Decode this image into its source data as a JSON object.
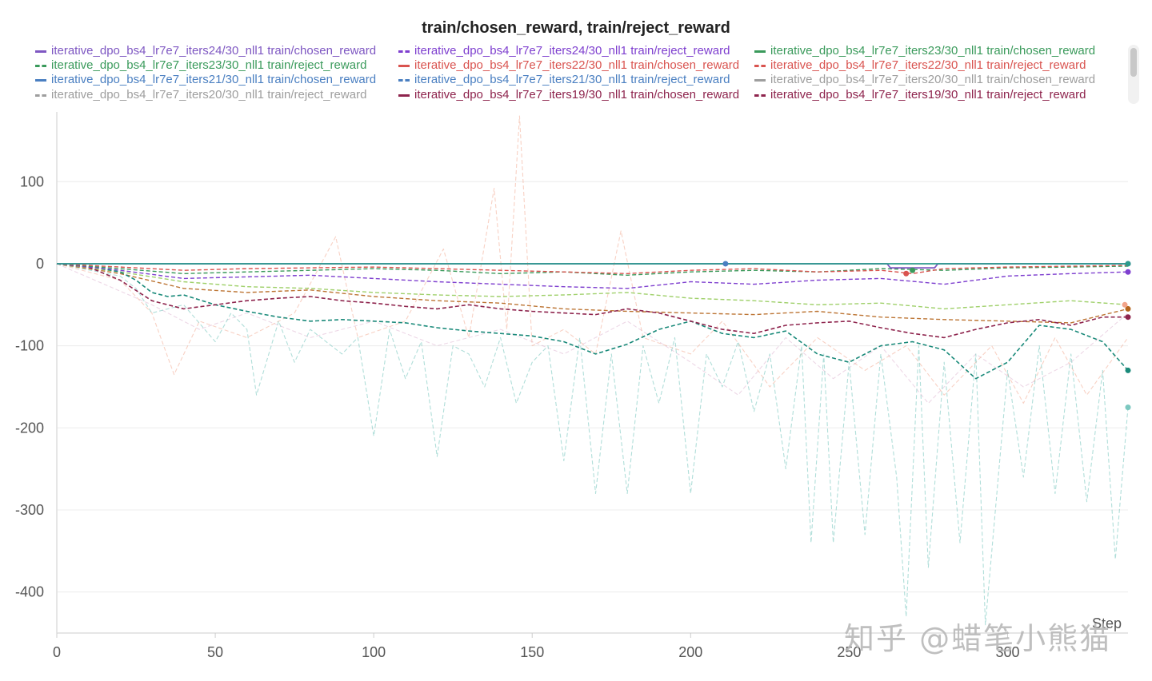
{
  "chart_data": {
    "type": "line",
    "title": "train/chosen_reward, train/reject_reward",
    "xlabel": "Step",
    "ylabel": "",
    "xlim": [
      0,
      338
    ],
    "ylim": [
      -450,
      185
    ],
    "xticks": [
      0,
      50,
      100,
      150,
      200,
      250,
      300
    ],
    "yticks": [
      100,
      0,
      -100,
      -200,
      -300,
      -400
    ],
    "grid": true,
    "legend_position": "top",
    "legend": [
      {
        "label": "iterative_dpo_bs4_lr7e7_iters24/30_nll1 train/chosen_reward",
        "color": "#7e57c2",
        "style": "solid"
      },
      {
        "label": "iterative_dpo_bs4_lr7e7_iters24/30_nll1 train/reject_reward",
        "color": "#7e3fcf",
        "style": "dashed"
      },
      {
        "label": "iterative_dpo_bs4_lr7e7_iters23/30_nll1 train/chosen_reward",
        "color": "#3a9a5b",
        "style": "solid"
      },
      {
        "label": "iterative_dpo_bs4_lr7e7_iters23/30_nll1 train/reject_reward",
        "color": "#3a9a5b",
        "style": "dashed"
      },
      {
        "label": "iterative_dpo_bs4_lr7e7_iters22/30_nll1 train/chosen_reward",
        "color": "#d9534f",
        "style": "solid"
      },
      {
        "label": "iterative_dpo_bs4_lr7e7_iters22/30_nll1 train/reject_reward",
        "color": "#d9534f",
        "style": "dashed"
      },
      {
        "label": "iterative_dpo_bs4_lr7e7_iters21/30_nll1 train/chosen_reward",
        "color": "#4a7fc1",
        "style": "solid"
      },
      {
        "label": "iterative_dpo_bs4_lr7e7_iters21/30_nll1 train/reject_reward",
        "color": "#4a7fc1",
        "style": "dashed"
      },
      {
        "label": "iterative_dpo_bs4_lr7e7_iters20/30_nll1 train/chosen_reward",
        "color": "#9e9e9e",
        "style": "solid"
      },
      {
        "label": "iterative_dpo_bs4_lr7e7_iters20/30_nll1 train/reject_reward",
        "color": "#9e9e9e",
        "style": "dashed"
      },
      {
        "label": "iterative_dpo_bs4_lr7e7_iters19/30_nll1 train/chosen_reward",
        "color": "#8e244d",
        "style": "solid"
      },
      {
        "label": "iterative_dpo_bs4_lr7e7_iters19/30_nll1 train/reject_reward",
        "color": "#8e244d",
        "style": "dashed"
      }
    ],
    "series": [
      {
        "name": "teal reject_reward (smoothed)",
        "color": "#1a8a7a",
        "style": "dashed",
        "width": 1.6,
        "opacity": 1,
        "x": [
          0,
          10,
          20,
          25,
          30,
          35,
          40,
          50,
          60,
          70,
          80,
          90,
          100,
          110,
          120,
          130,
          140,
          150,
          160,
          170,
          180,
          190,
          200,
          210,
          220,
          230,
          240,
          250,
          260,
          270,
          280,
          290,
          300,
          310,
          320,
          330,
          338
        ],
        "y": [
          0,
          -3,
          -10,
          -20,
          -35,
          -40,
          -38,
          -50,
          -58,
          -65,
          -70,
          -68,
          -70,
          -72,
          -78,
          -82,
          -85,
          -88,
          -95,
          -110,
          -98,
          -80,
          -70,
          -85,
          -90,
          -82,
          -110,
          -120,
          -100,
          -95,
          -105,
          -140,
          -120,
          -75,
          -80,
          -95,
          -130
        ]
      },
      {
        "name": "maroon reject_reward (smoothed)",
        "color": "#8e244d",
        "style": "dashed",
        "width": 1.6,
        "opacity": 1,
        "x": [
          0,
          10,
          20,
          30,
          40,
          50,
          60,
          70,
          80,
          90,
          100,
          110,
          120,
          130,
          140,
          150,
          160,
          170,
          180,
          190,
          200,
          210,
          220,
          230,
          240,
          250,
          260,
          270,
          280,
          290,
          300,
          310,
          320,
          330,
          338
        ],
        "y": [
          0,
          -4,
          -20,
          -45,
          -55,
          -50,
          -45,
          -42,
          -40,
          -45,
          -48,
          -52,
          -55,
          -50,
          -55,
          -58,
          -60,
          -62,
          -55,
          -60,
          -70,
          -80,
          -85,
          -75,
          -72,
          -70,
          -78,
          -85,
          -90,
          -80,
          -72,
          -68,
          -75,
          -65,
          -65
        ]
      },
      {
        "name": "brown reject_reward (smoothed)",
        "color": "#b5651d",
        "style": "dashed",
        "width": 1.4,
        "opacity": 0.9,
        "x": [
          0,
          20,
          40,
          60,
          80,
          100,
          120,
          140,
          160,
          180,
          200,
          220,
          240,
          260,
          280,
          300,
          320,
          338
        ],
        "y": [
          0,
          -12,
          -30,
          -35,
          -32,
          -40,
          -45,
          -48,
          -55,
          -58,
          -60,
          -62,
          -58,
          -65,
          -68,
          -70,
          -72,
          -55
        ]
      },
      {
        "name": "light green reject_reward (smoothed)",
        "color": "#9acd62",
        "style": "dashed",
        "width": 1.4,
        "opacity": 0.95,
        "x": [
          0,
          20,
          40,
          60,
          80,
          100,
          120,
          140,
          160,
          180,
          200,
          220,
          240,
          260,
          280,
          300,
          320,
          338
        ],
        "y": [
          0,
          -10,
          -22,
          -28,
          -30,
          -35,
          -38,
          -40,
          -38,
          -35,
          -42,
          -45,
          -50,
          -48,
          -55,
          -50,
          -45,
          -50
        ]
      },
      {
        "name": "purple reject_reward (smoothed)",
        "color": "#7e3fcf",
        "style": "dashed",
        "width": 1.4,
        "opacity": 1,
        "x": [
          0,
          20,
          40,
          60,
          80,
          100,
          120,
          140,
          160,
          180,
          200,
          220,
          240,
          260,
          280,
          300,
          320,
          338
        ],
        "y": [
          0,
          -8,
          -18,
          -16,
          -14,
          -18,
          -22,
          -25,
          -28,
          -30,
          -22,
          -25,
          -20,
          -18,
          -25,
          -15,
          -12,
          -10
        ]
      },
      {
        "name": "green reject_reward (smoothed)",
        "color": "#3a9a5b",
        "style": "dashed",
        "width": 1.4,
        "opacity": 1,
        "x": [
          0,
          20,
          40,
          60,
          80,
          100,
          120,
          140,
          160,
          180,
          200,
          220,
          240,
          260,
          280,
          300,
          320,
          338
        ],
        "y": [
          0,
          -6,
          -12,
          -10,
          -8,
          -6,
          -8,
          -12,
          -10,
          -14,
          -10,
          -8,
          -10,
          -6,
          -8,
          -5,
          -4,
          -3
        ]
      },
      {
        "name": "red reject_reward (smoothed)",
        "color": "#d9534f",
        "style": "dashed",
        "width": 1.4,
        "opacity": 1,
        "x": [
          0,
          20,
          40,
          60,
          80,
          100,
          120,
          140,
          160,
          180,
          200,
          220,
          240,
          260,
          270,
          280,
          300,
          320,
          338
        ],
        "y": [
          0,
          -4,
          -8,
          -6,
          -5,
          -4,
          -6,
          -8,
          -10,
          -12,
          -8,
          -6,
          -10,
          -8,
          -12,
          -6,
          -4,
          -3,
          -2
        ]
      },
      {
        "name": "light teal reject_reward (raw)",
        "color": "#7cc8c0",
        "style": "dashed",
        "width": 1.1,
        "opacity": 0.6,
        "x": [
          0,
          20,
          25,
          30,
          40,
          50,
          55,
          60,
          63,
          70,
          75,
          80,
          90,
          95,
          100,
          105,
          110,
          115,
          120,
          125,
          130,
          135,
          140,
          145,
          150,
          155,
          160,
          165,
          170,
          175,
          180,
          185,
          190,
          195,
          200,
          205,
          210,
          215,
          220,
          225,
          230,
          235,
          238,
          242,
          245,
          250,
          255,
          260,
          265,
          268,
          272,
          275,
          280,
          285,
          290,
          293,
          300,
          305,
          310,
          315,
          320,
          325,
          330,
          334,
          338
        ],
        "y": [
          0,
          -15,
          -30,
          -60,
          -50,
          -95,
          -60,
          -80,
          -160,
          -70,
          -120,
          -80,
          -110,
          -90,
          -210,
          -80,
          -140,
          -95,
          -235,
          -100,
          -110,
          -150,
          -90,
          -170,
          -120,
          -100,
          -240,
          -90,
          -280,
          -110,
          -280,
          -100,
          -170,
          -90,
          -280,
          -110,
          -150,
          -95,
          -180,
          -110,
          -250,
          -100,
          -340,
          -110,
          -340,
          -120,
          -330,
          -110,
          -260,
          -430,
          -100,
          -370,
          -120,
          -340,
          -110,
          -440,
          -130,
          -260,
          -100,
          -280,
          -110,
          -290,
          -130,
          -360,
          -175
        ]
      },
      {
        "name": "light orange reject_reward (raw)",
        "color": "#f2a48a",
        "style": "dashed",
        "width": 1.1,
        "opacity": 0.5,
        "x": [
          0,
          20,
          30,
          37,
          45,
          60,
          75,
          88,
          95,
          110,
          122,
          130,
          138,
          142,
          146,
          150,
          160,
          170,
          178,
          185,
          200,
          210,
          225,
          240,
          255,
          268,
          280,
          295,
          305,
          315,
          325,
          338
        ],
        "y": [
          0,
          -20,
          -60,
          -135,
          -70,
          -90,
          -60,
          33,
          -90,
          -70,
          18,
          -90,
          92,
          -80,
          180,
          -100,
          -80,
          -110,
          40,
          -90,
          -110,
          -70,
          -150,
          -90,
          -130,
          -100,
          -160,
          -100,
          -170,
          -90,
          -160,
          -90
        ]
      },
      {
        "name": "light pink reject_reward (raw)",
        "color": "#d8a6c8",
        "style": "dashed",
        "width": 1.1,
        "opacity": 0.45,
        "x": [
          0,
          30,
          45,
          60,
          80,
          100,
          120,
          140,
          160,
          180,
          200,
          215,
          230,
          245,
          260,
          275,
          290,
          305,
          320,
          338
        ],
        "y": [
          0,
          -50,
          -80,
          -60,
          -90,
          -70,
          -100,
          -80,
          -110,
          -70,
          -120,
          -160,
          -90,
          -140,
          -100,
          -170,
          -110,
          -150,
          -120,
          -60
        ]
      },
      {
        "name": "purple chosen_reward",
        "color": "#7e57c2",
        "style": "solid",
        "width": 1.8,
        "opacity": 1,
        "x": [
          0,
          100,
          200,
          262,
          263,
          277,
          278,
          338
        ],
        "y": [
          0,
          0,
          0,
          0,
          -5,
          -5,
          0,
          0
        ]
      },
      {
        "name": "teal chosen_reward",
        "color": "#2c9b8c",
        "style": "solid",
        "width": 1.8,
        "opacity": 1,
        "x": [
          0,
          100,
          200,
          300,
          338
        ],
        "y": [
          0,
          0,
          0,
          0,
          0
        ]
      }
    ],
    "end_markers": [
      {
        "x": 338,
        "y": -130,
        "color": "#1a8a7a"
      },
      {
        "x": 338,
        "y": -65,
        "color": "#8e244d"
      },
      {
        "x": 338,
        "y": -55,
        "color": "#b5651d"
      },
      {
        "x": 338,
        "y": -10,
        "color": "#7e3fcf"
      },
      {
        "x": 338,
        "y": -175,
        "color": "#7cc8c0"
      },
      {
        "x": 338,
        "y": 0,
        "color": "#7e57c2"
      },
      {
        "x": 338,
        "y": 0,
        "color": "#2c9b8c"
      },
      {
        "x": 211,
        "y": 0,
        "color": "#4a7fc1"
      },
      {
        "x": 268,
        "y": -12,
        "color": "#d9534f"
      },
      {
        "x": 270,
        "y": -8,
        "color": "#3a9a5b"
      },
      {
        "x": 337,
        "y": -50,
        "color": "#f2a48a"
      }
    ]
  },
  "watermark": "知乎 @蜡笔小熊猫"
}
